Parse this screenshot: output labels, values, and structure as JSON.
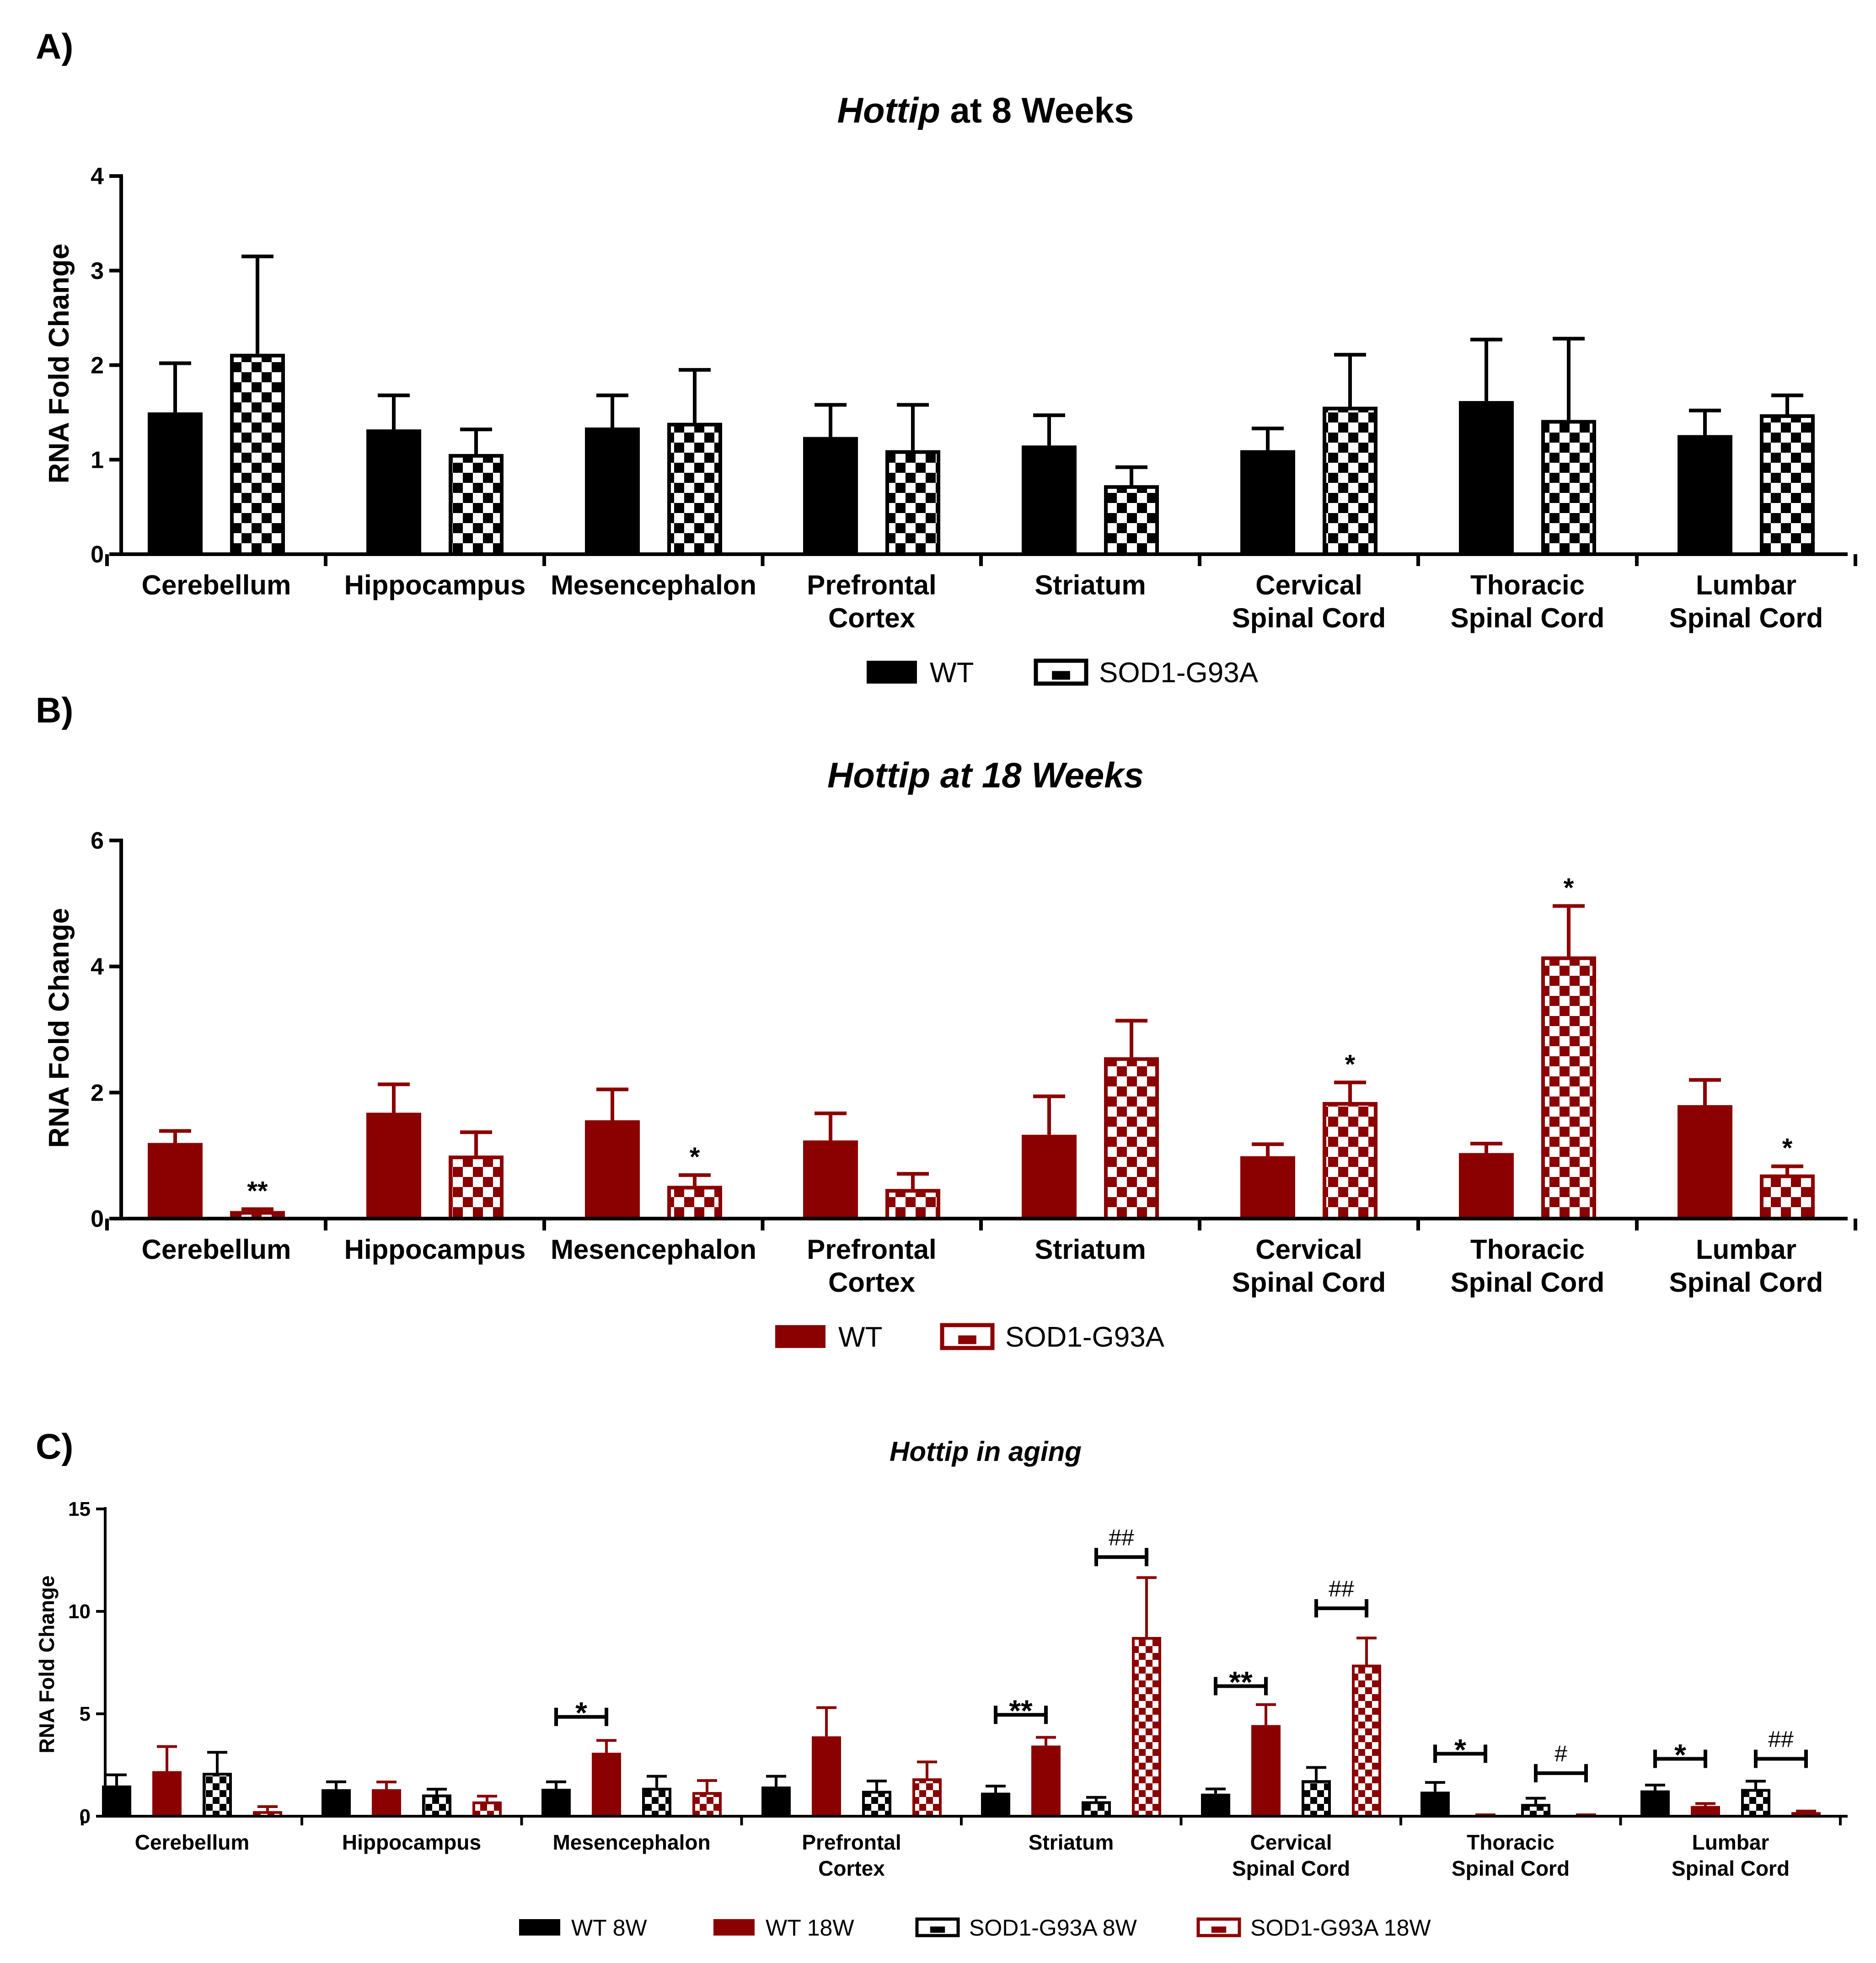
{
  "panels": [
    {
      "letter": "A)"
    },
    {
      "letter": "B)"
    },
    {
      "letter": "C)"
    }
  ],
  "colors": {
    "black": "#000000",
    "dark_red": "#8b0000",
    "white": "#ffffff"
  },
  "chart_data": [
    {
      "type": "bar",
      "panel": "A)",
      "title_italic": "Hottip",
      "title_rest": " at 8 Weeks",
      "ylabel": "RNA Fold Change",
      "xlabel": "",
      "ylim": [
        0,
        4
      ],
      "yticks": [
        0,
        1,
        2,
        3,
        4
      ],
      "categories": [
        [
          "Cerebellum"
        ],
        [
          "Hippocampus"
        ],
        [
          "Mesencephalon"
        ],
        [
          "Prefrontal",
          "Cortex"
        ],
        [
          "Striatum"
        ],
        [
          "Cervical",
          "Spinal Cord"
        ],
        [
          "Thoracic",
          "Spinal Cord"
        ],
        [
          "Lumbar",
          "Spinal Cord"
        ]
      ],
      "series": [
        {
          "name": "WT",
          "pattern": "solid",
          "color": "#000000",
          "values": [
            1.5,
            1.32,
            1.34,
            1.24,
            1.15,
            1.1,
            1.62,
            1.26
          ],
          "errors": [
            0.52,
            0.36,
            0.34,
            0.34,
            0.32,
            0.23,
            0.65,
            0.26
          ]
        },
        {
          "name": "SOD1-G93A",
          "pattern": "checker",
          "color": "#000000",
          "values": [
            2.12,
            1.06,
            1.39,
            1.1,
            0.73,
            1.56,
            1.42,
            1.48
          ],
          "errors": [
            1.03,
            0.26,
            0.56,
            0.48,
            0.19,
            0.55,
            0.86,
            0.2
          ]
        }
      ],
      "annotations": [],
      "legend": [
        "WT",
        "SOD1-G93A"
      ]
    },
    {
      "type": "bar",
      "panel": "B)",
      "title": "Hottip at 18 Weeks",
      "ylabel": "RNA Fold Change",
      "xlabel": "",
      "ylim": [
        0,
        6
      ],
      "yticks": [
        0,
        2,
        4,
        6
      ],
      "categories": [
        [
          "Cerebellum"
        ],
        [
          "Hippocampus"
        ],
        [
          "Mesencephalon"
        ],
        [
          "Prefrontal",
          "Cortex"
        ],
        [
          "Striatum"
        ],
        [
          "Cervical",
          "Spinal Cord"
        ],
        [
          "Thoracic",
          "Spinal Cord"
        ],
        [
          "Lumbar",
          "Spinal Cord"
        ]
      ],
      "series": [
        {
          "name": "WT",
          "pattern": "solid",
          "color": "#8b0000",
          "values": [
            1.2,
            1.68,
            1.56,
            1.24,
            1.33,
            0.99,
            1.04,
            1.8
          ],
          "errors": [
            0.19,
            0.45,
            0.49,
            0.43,
            0.61,
            0.19,
            0.15,
            0.4
          ]
        },
        {
          "name": "SOD1-G93A",
          "pattern": "checker",
          "color": "#8b0000",
          "values": [
            0.12,
            1.0,
            0.52,
            0.47,
            2.56,
            1.85,
            4.16,
            0.7
          ],
          "errors": [
            0.03,
            0.37,
            0.17,
            0.24,
            0.58,
            0.31,
            0.8,
            0.13
          ]
        }
      ],
      "annotations": [
        {
          "category": 0,
          "series": 1,
          "text": "**"
        },
        {
          "category": 2,
          "series": 1,
          "text": "*"
        },
        {
          "category": 5,
          "series": 1,
          "text": "*"
        },
        {
          "category": 6,
          "series": 1,
          "text": "*"
        },
        {
          "category": 7,
          "series": 1,
          "text": "*"
        }
      ],
      "legend": [
        "WT",
        "SOD1-G93A"
      ]
    },
    {
      "type": "bar",
      "panel": "C)",
      "title": "Hottip in aging",
      "ylabel": "RNA Fold Change",
      "xlabel": "",
      "ylim": [
        0,
        15
      ],
      "yticks": [
        0,
        5,
        10,
        15
      ],
      "categories": [
        [
          "Cerebellum"
        ],
        [
          "Hippocampus"
        ],
        [
          "Mesencephalon"
        ],
        [
          "Prefrontal",
          "Cortex"
        ],
        [
          "Striatum"
        ],
        [
          "Cervical",
          "Spinal Cord"
        ],
        [
          "Thoracic",
          "Spinal Cord"
        ],
        [
          "Lumbar",
          "Spinal Cord"
        ]
      ],
      "series": [
        {
          "name": "WT 8W",
          "pattern": "solid",
          "color": "#000000",
          "values": [
            1.5,
            1.32,
            1.34,
            1.45,
            1.15,
            1.1,
            1.2,
            1.26
          ],
          "errors": [
            0.52,
            0.36,
            0.34,
            0.5,
            0.32,
            0.23,
            0.45,
            0.26
          ]
        },
        {
          "name": "WT 18W",
          "pattern": "solid",
          "color": "#8b0000",
          "values": [
            2.2,
            1.32,
            3.1,
            3.9,
            3.45,
            4.45,
            0.05,
            0.5
          ],
          "errors": [
            1.2,
            0.35,
            0.6,
            1.4,
            0.4,
            1.0,
            0.02,
            0.12
          ]
        },
        {
          "name": "SOD1-G93A 8W",
          "pattern": "checker",
          "color": "#000000",
          "values": [
            2.12,
            1.06,
            1.39,
            1.24,
            0.73,
            1.76,
            0.6,
            1.33
          ],
          "errors": [
            1.0,
            0.26,
            0.56,
            0.48,
            0.19,
            0.62,
            0.28,
            0.38
          ]
        },
        {
          "name": "SOD1-G93A 18W",
          "pattern": "checker",
          "color": "#8b0000",
          "values": [
            0.25,
            0.72,
            1.18,
            1.85,
            8.75,
            7.4,
            0.05,
            0.2
          ],
          "errors": [
            0.22,
            0.26,
            0.56,
            0.8,
            2.9,
            1.3,
            0.02,
            0.05
          ]
        }
      ],
      "brackets": [
        {
          "category": 2,
          "from_series": 0,
          "to_series": 1,
          "y": 4.85,
          "text": "*"
        },
        {
          "category": 4,
          "from_series": 0,
          "to_series": 1,
          "y": 4.95,
          "text": "**"
        },
        {
          "category": 4,
          "from_series": 2,
          "to_series": 3,
          "y": 12.65,
          "text": "##"
        },
        {
          "category": 5,
          "from_series": 0,
          "to_series": 1,
          "y": 6.35,
          "text": "**"
        },
        {
          "category": 5,
          "from_series": 2,
          "to_series": 3,
          "y": 10.15,
          "text": "##"
        },
        {
          "category": 6,
          "from_series": 0,
          "to_series": 1,
          "y": 3.05,
          "text": "*"
        },
        {
          "category": 6,
          "from_series": 2,
          "to_series": 3,
          "y": 2.1,
          "text": "#"
        },
        {
          "category": 7,
          "from_series": 0,
          "to_series": 1,
          "y": 2.8,
          "text": "*"
        },
        {
          "category": 7,
          "from_series": 2,
          "to_series": 3,
          "y": 2.8,
          "text": "##"
        }
      ],
      "legend": [
        "WT 8W",
        "WT 18W",
        "SOD1-G93A 8W",
        "SOD1-G93A 18W"
      ]
    }
  ]
}
